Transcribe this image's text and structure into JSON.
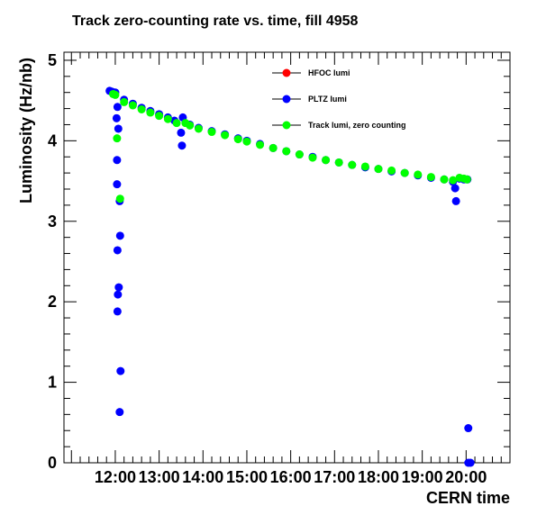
{
  "chart_data": {
    "type": "scatter",
    "title": "Track zero-counting rate vs. time, fill 4958",
    "xlabel": "CERN time",
    "ylabel": "Luminosity (Hz/nb)",
    "x_unit": "hours",
    "xlim": [
      10.83,
      21.0
    ],
    "ylim": [
      0,
      5.1
    ],
    "x_ticks": [
      {
        "value": 12,
        "label": "12:00"
      },
      {
        "value": 13,
        "label": "13:00"
      },
      {
        "value": 14,
        "label": "14:00"
      },
      {
        "value": 15,
        "label": "15:00"
      },
      {
        "value": 16,
        "label": "16:00"
      },
      {
        "value": 17,
        "label": "17:00"
      },
      {
        "value": 18,
        "label": "18:00"
      },
      {
        "value": 19,
        "label": "19:00"
      },
      {
        "value": 20,
        "label": "20:00"
      }
    ],
    "y_ticks": [
      0,
      1,
      2,
      3,
      4,
      5
    ],
    "legend_position": "top-right",
    "grid": false,
    "series": [
      {
        "name": "HFOC lumi",
        "color": "#ff0000",
        "points": []
      },
      {
        "name": "PLTZ lumi",
        "color": "#0000ff",
        "points": [
          [
            11.87,
            4.62
          ],
          [
            11.92,
            4.61
          ],
          [
            11.97,
            4.6
          ],
          [
            12.0,
            4.6
          ],
          [
            12.05,
            4.42
          ],
          [
            12.03,
            4.28
          ],
          [
            12.07,
            4.15
          ],
          [
            12.04,
            3.76
          ],
          [
            12.04,
            3.46
          ],
          [
            12.1,
            3.25
          ],
          [
            12.11,
            2.82
          ],
          [
            12.05,
            2.64
          ],
          [
            12.08,
            2.18
          ],
          [
            12.06,
            2.09
          ],
          [
            12.05,
            1.88
          ],
          [
            12.12,
            1.14
          ],
          [
            12.1,
            0.63
          ],
          [
            12.2,
            4.51
          ],
          [
            12.4,
            4.46
          ],
          [
            12.6,
            4.41
          ],
          [
            12.8,
            4.37
          ],
          [
            13.0,
            4.33
          ],
          [
            13.2,
            4.29
          ],
          [
            13.35,
            4.25
          ],
          [
            13.5,
            4.1
          ],
          [
            13.52,
            3.94
          ],
          [
            13.54,
            4.29
          ],
          [
            13.7,
            4.2
          ],
          [
            13.9,
            4.16
          ],
          [
            14.2,
            4.12
          ],
          [
            14.5,
            4.08
          ],
          [
            14.8,
            4.03
          ],
          [
            15.0,
            4.0
          ],
          [
            15.3,
            3.96
          ],
          [
            15.6,
            3.91
          ],
          [
            15.9,
            3.87
          ],
          [
            16.2,
            3.83
          ],
          [
            16.5,
            3.8
          ],
          [
            16.8,
            3.76
          ],
          [
            17.1,
            3.73
          ],
          [
            17.4,
            3.7
          ],
          [
            17.7,
            3.67
          ],
          [
            18.0,
            3.65
          ],
          [
            18.3,
            3.62
          ],
          [
            18.6,
            3.6
          ],
          [
            18.9,
            3.57
          ],
          [
            19.2,
            3.54
          ],
          [
            19.5,
            3.52
          ],
          [
            19.7,
            3.49
          ],
          [
            19.75,
            3.41
          ],
          [
            19.77,
            3.25
          ],
          [
            19.85,
            3.53
          ],
          [
            19.95,
            3.52
          ],
          [
            20.03,
            3.52
          ],
          [
            20.05,
            0.43
          ],
          [
            20.05,
            0.0
          ],
          [
            20.1,
            0.0
          ]
        ]
      },
      {
        "name": "Track lumi, zero counting",
        "color": "#00ff00",
        "points": [
          [
            11.95,
            4.58
          ],
          [
            12.0,
            4.57
          ],
          [
            12.04,
            4.03
          ],
          [
            12.11,
            3.28
          ],
          [
            12.2,
            4.48
          ],
          [
            12.4,
            4.44
          ],
          [
            12.6,
            4.39
          ],
          [
            12.8,
            4.35
          ],
          [
            13.0,
            4.31
          ],
          [
            13.2,
            4.27
          ],
          [
            13.4,
            4.22
          ],
          [
            13.6,
            4.22
          ],
          [
            13.7,
            4.19
          ],
          [
            13.9,
            4.15
          ],
          [
            14.2,
            4.11
          ],
          [
            14.5,
            4.07
          ],
          [
            14.8,
            4.02
          ],
          [
            15.0,
            3.99
          ],
          [
            15.3,
            3.95
          ],
          [
            15.6,
            3.91
          ],
          [
            15.9,
            3.87
          ],
          [
            16.2,
            3.83
          ],
          [
            16.5,
            3.79
          ],
          [
            16.8,
            3.76
          ],
          [
            17.1,
            3.73
          ],
          [
            17.4,
            3.7
          ],
          [
            17.7,
            3.68
          ],
          [
            18.0,
            3.65
          ],
          [
            18.3,
            3.63
          ],
          [
            18.6,
            3.6
          ],
          [
            18.9,
            3.58
          ],
          [
            19.2,
            3.55
          ],
          [
            19.5,
            3.52
          ],
          [
            19.7,
            3.51
          ],
          [
            19.85,
            3.54
          ],
          [
            19.95,
            3.53
          ],
          [
            20.02,
            3.52
          ]
        ]
      }
    ]
  }
}
